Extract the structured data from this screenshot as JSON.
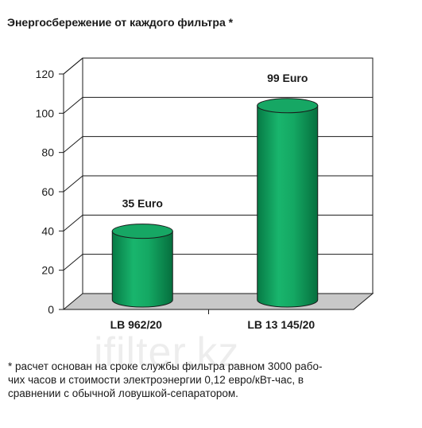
{
  "chart_data": {
    "type": "bar",
    "title": "Энергосбережение от каждого фильтра *",
    "categories": [
      "LB 962/20",
      "LB 13 145/20"
    ],
    "values": [
      35,
      99
    ],
    "data_labels": [
      "35 Euro",
      "99 Euro"
    ],
    "yticks": [
      0,
      20,
      40,
      60,
      80,
      100,
      120
    ],
    "ylim": [
      0,
      120
    ],
    "grid": true,
    "bar_color": "#11a464"
  },
  "footnote": {
    "lines": [
      "* расчет основан на сроке службы фильтра равном 3000 рабо-",
      "чих часов и стоимости электроэнергии 0,12 евро/кВт-час, в",
      "сравнении с обычной ловушкой-сепаратором."
    ]
  },
  "watermark": "ifilter.kz"
}
